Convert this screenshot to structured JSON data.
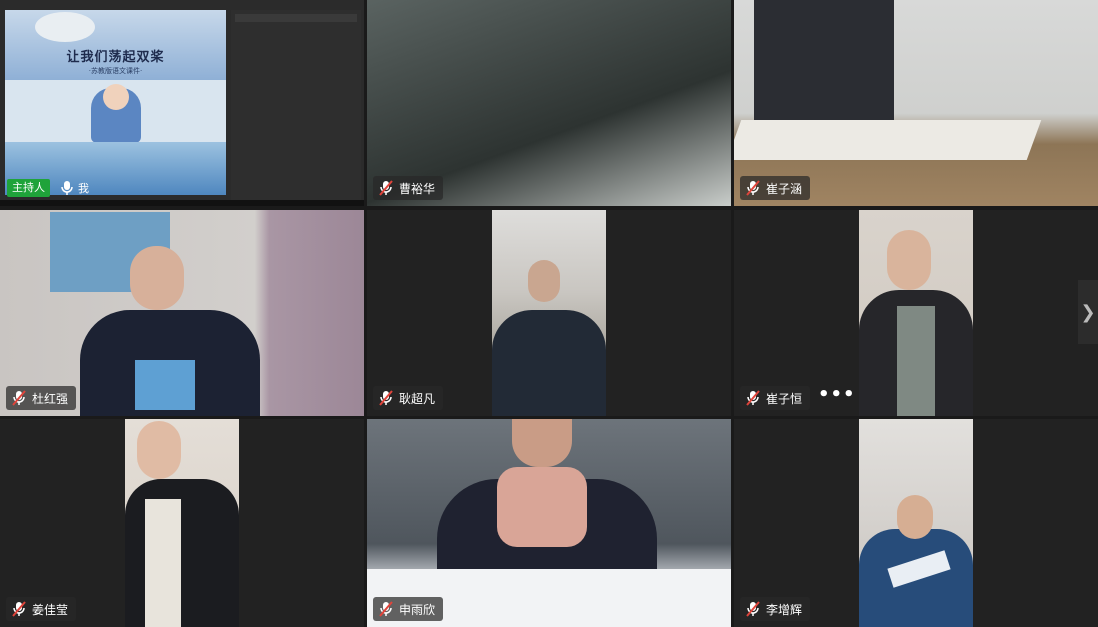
{
  "host_tile": {
    "slide_title": "让我们荡起双桨",
    "slide_subtitle": "·苏教版语文课件·",
    "host_badge": "主持人",
    "self_label": "我"
  },
  "participants": [
    {
      "name": "曹裕华",
      "muted": true
    },
    {
      "name": "崔子涵",
      "muted": true
    },
    {
      "name": "杜红强",
      "muted": true
    },
    {
      "name": "耿超凡",
      "muted": true
    },
    {
      "name": "崔子恒",
      "muted": true
    },
    {
      "name": "姜佳莹",
      "muted": true
    },
    {
      "name": "申雨欣",
      "muted": true
    },
    {
      "name": "李增辉",
      "muted": true
    }
  ],
  "more_label": "•••",
  "next_page_icon": "chevron-right-icon",
  "colors": {
    "background": "#1a1a1a",
    "host_badge": "#1fa33a",
    "muted_slash": "#e0443b"
  }
}
